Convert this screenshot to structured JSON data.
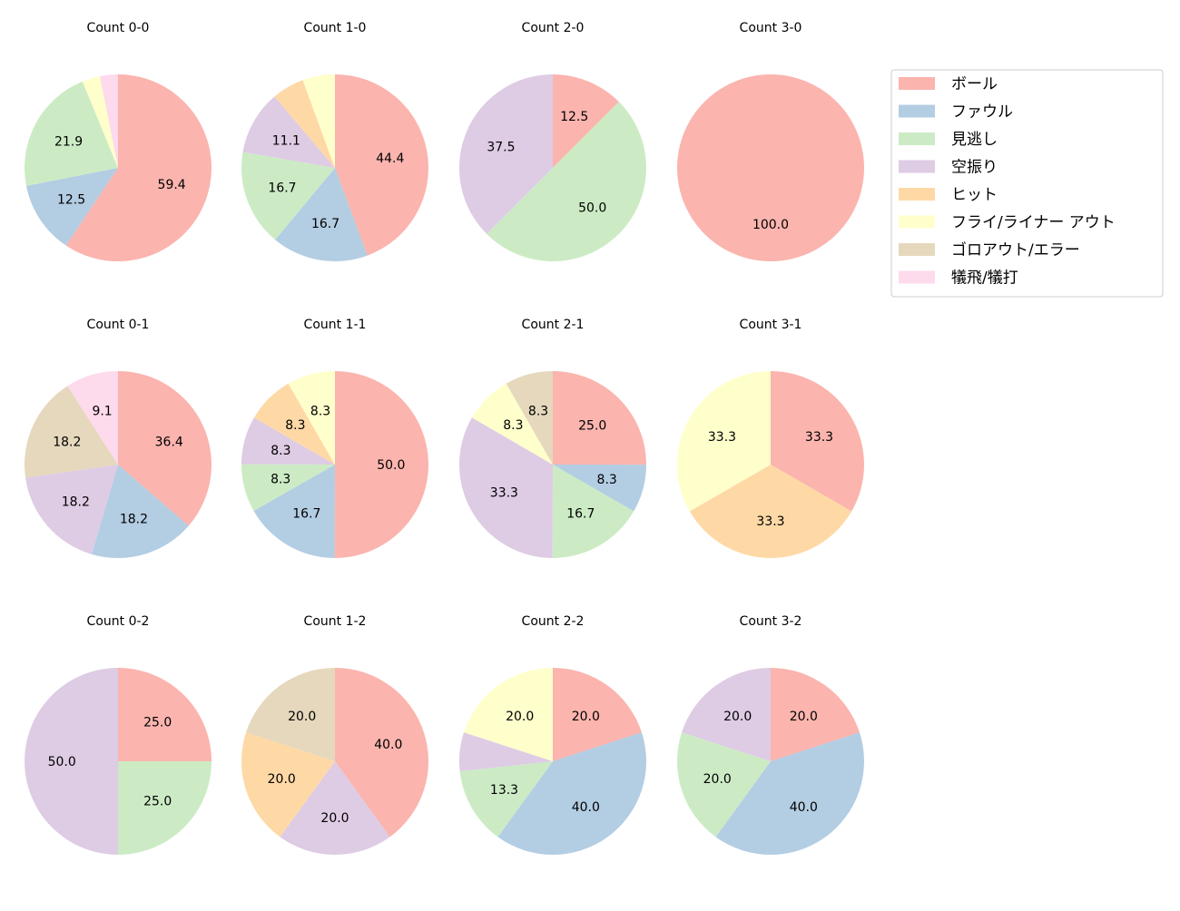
{
  "chart_data": {
    "type": "pie",
    "categories": [
      "ボール",
      "ファウル",
      "見逃し",
      "空振り",
      "ヒット",
      "フライ/ライナー アウト",
      "ゴロアウト/エラー",
      "犠飛/犠打"
    ],
    "colors": [
      "#fbb4ae",
      "#b3cde3",
      "#ccebc5",
      "#decbe4",
      "#fed9a6",
      "#ffffcc",
      "#e5d8bd",
      "#fddaec"
    ],
    "legend_position": "right",
    "start_angle": 90,
    "direction": "clockwise",
    "pies": [
      {
        "title": "Count 0-0",
        "values": [
          59.4,
          12.5,
          21.9,
          0,
          0,
          3.1,
          0,
          3.1
        ],
        "labels": [
          "59.4",
          "12.5",
          "21.9",
          "",
          "",
          "",
          "",
          ""
        ]
      },
      {
        "title": "Count 1-0",
        "values": [
          44.4,
          16.7,
          16.7,
          11.1,
          5.6,
          5.6,
          0,
          0
        ],
        "labels": [
          "44.4",
          "16.7",
          "16.7",
          "11.1",
          "",
          "",
          "",
          ""
        ]
      },
      {
        "title": "Count 2-0",
        "values": [
          12.5,
          0,
          50.0,
          37.5,
          0,
          0,
          0,
          0
        ],
        "labels": [
          "12.5",
          "",
          "50.0",
          "37.5",
          "",
          "",
          "",
          ""
        ]
      },
      {
        "title": "Count 3-0",
        "values": [
          100.0,
          0,
          0,
          0,
          0,
          0,
          0,
          0
        ],
        "labels": [
          "100.0",
          "",
          "",
          "",
          "",
          "",
          "",
          ""
        ]
      },
      {
        "title": "Count 0-1",
        "values": [
          36.4,
          18.2,
          0,
          18.2,
          0,
          0,
          18.2,
          9.1
        ],
        "labels": [
          "36.4",
          "18.2",
          "",
          "18.2",
          "",
          "",
          "18.2",
          "9.1"
        ]
      },
      {
        "title": "Count 1-1",
        "values": [
          50.0,
          16.7,
          8.3,
          8.3,
          8.3,
          8.3,
          0,
          0
        ],
        "labels": [
          "50.0",
          "16.7",
          "8.3",
          "8.3",
          "8.3",
          "8.3",
          "",
          ""
        ]
      },
      {
        "title": "Count 2-1",
        "values": [
          25.0,
          8.3,
          16.7,
          33.3,
          0,
          8.3,
          8.3,
          0
        ],
        "labels": [
          "25.0",
          "8.3",
          "16.7",
          "33.3",
          "",
          "8.3",
          "8.3",
          ""
        ]
      },
      {
        "title": "Count 3-1",
        "values": [
          33.3,
          0,
          0,
          0,
          33.3,
          33.3,
          0,
          0
        ],
        "labels": [
          "33.3",
          "",
          "",
          "",
          "33.3",
          "33.3",
          "",
          ""
        ]
      },
      {
        "title": "Count 0-2",
        "values": [
          25.0,
          0,
          25.0,
          50.0,
          0,
          0,
          0,
          0
        ],
        "labels": [
          "25.0",
          "",
          "25.0",
          "50.0",
          "",
          "",
          "",
          ""
        ]
      },
      {
        "title": "Count 1-2",
        "values": [
          40.0,
          0,
          0,
          20.0,
          20.0,
          0,
          20.0,
          0
        ],
        "labels": [
          "40.0",
          "",
          "",
          "20.0",
          "20.0",
          "",
          "20.0",
          ""
        ]
      },
      {
        "title": "Count 2-2",
        "values": [
          20.0,
          40.0,
          13.3,
          6.7,
          0,
          20.0,
          0,
          0
        ],
        "labels": [
          "20.0",
          "40.0",
          "13.3",
          "",
          "",
          "20.0",
          "",
          ""
        ]
      },
      {
        "title": "Count 3-2",
        "values": [
          20.0,
          40.0,
          20.0,
          20.0,
          0,
          0,
          0,
          0
        ],
        "labels": [
          "20.0",
          "40.0",
          "20.0",
          "20.0",
          "",
          "",
          "",
          ""
        ]
      }
    ]
  }
}
